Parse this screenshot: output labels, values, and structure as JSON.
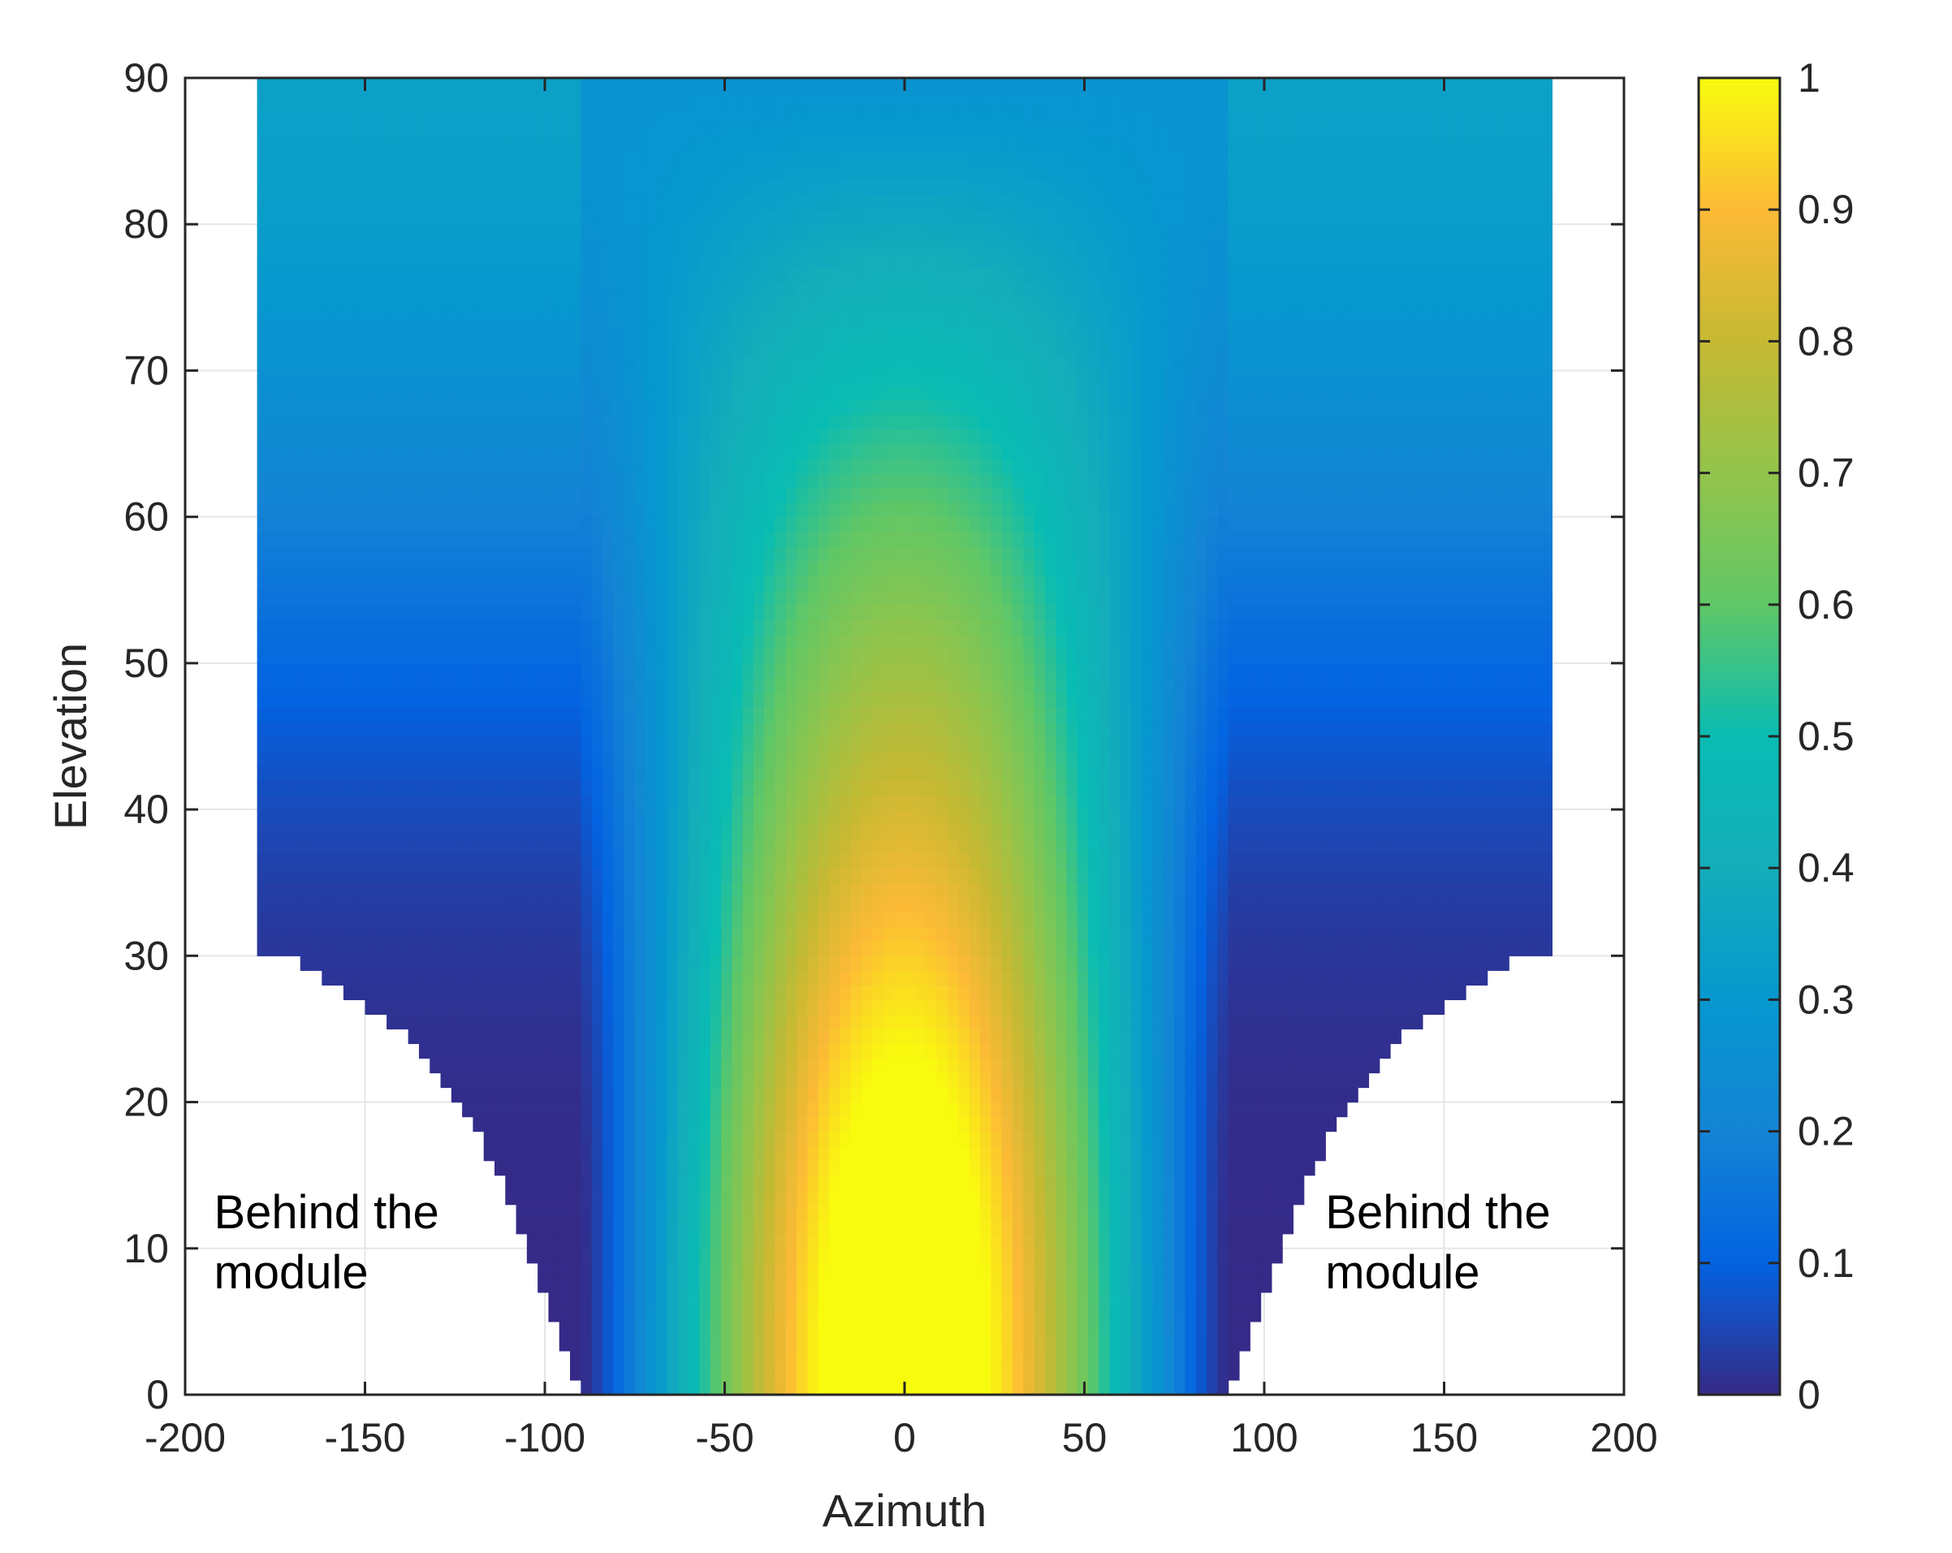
{
  "chart_data": {
    "type": "heatmap",
    "xlabel": "Azimuth",
    "ylabel": "Elevation",
    "xlim": [
      -200,
      200
    ],
    "ylim": [
      0,
      90
    ],
    "xticks": [
      -200,
      -150,
      -100,
      -50,
      0,
      50,
      100,
      150,
      200
    ],
    "yticks": [
      0,
      10,
      20,
      30,
      40,
      50,
      60,
      70,
      80,
      90
    ],
    "colorbar": {
      "colormap": "parula",
      "limits": [
        0,
        1
      ],
      "ticks": [
        0,
        0.1,
        0.2,
        0.3,
        0.4,
        0.5,
        0.6,
        0.7,
        0.8,
        0.9,
        1
      ]
    },
    "grid": true,
    "data_extent": {
      "azimuth": [
        -180,
        180
      ],
      "elevation": [
        0,
        90
      ]
    },
    "valid_region_boundary": {
      "description_values": "elevation -> |azimuth| outer limit of plotted data",
      "elevation": [
        0,
        5,
        10,
        15,
        20,
        25,
        30,
        30.5,
        90
      ],
      "abs_azimuth": [
        90,
        97,
        105,
        113,
        123,
        140,
        172,
        180,
        180
      ]
    },
    "annotations": [
      {
        "text_lines": [
          "Behind the",
          "module"
        ],
        "x": -192,
        "y": 9.5
      },
      {
        "text_lines": [
          "Behind the",
          "module"
        ],
        "x": 117,
        "y": 9.5
      }
    ],
    "peak": {
      "azimuth": 0,
      "elevation": 5,
      "value": 1.0
    }
  }
}
